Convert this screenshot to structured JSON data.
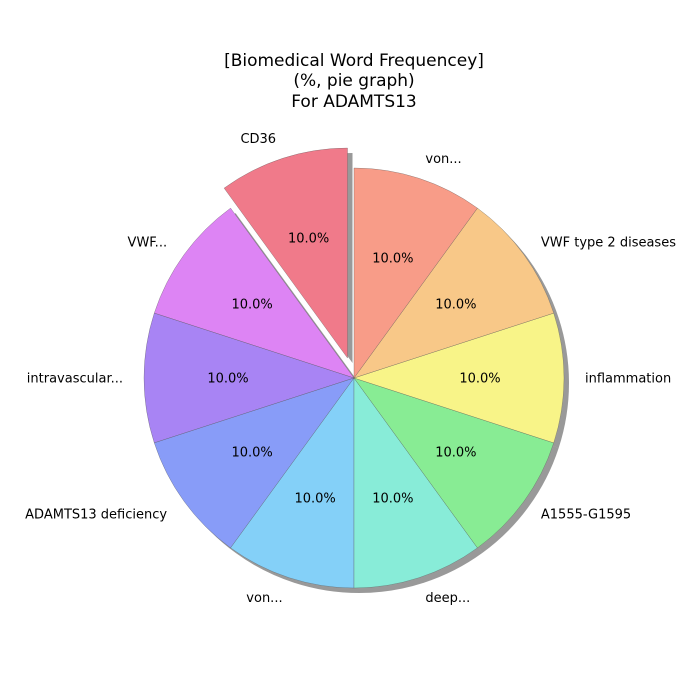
{
  "chart_data": {
    "type": "pie",
    "title": [
      "[Biomedical Word Frequencey]",
      "(%, pie graph)",
      "For ADAMTS13"
    ],
    "categories": [
      "CD36",
      "VWF...",
      "intravascular...",
      "ADAMTS13 deficiency",
      "von...",
      "deep...",
      "A1555-G1595",
      "inflammation",
      "VWF type 2 diseases",
      "von..."
    ],
    "values": [
      10.0,
      10.0,
      10.0,
      10.0,
      10.0,
      10.0,
      10.0,
      10.0,
      10.0,
      10.0
    ],
    "value_labels": [
      "10.0%",
      "10.0%",
      "10.0%",
      "10.0%",
      "10.0%",
      "10.0%",
      "10.0%",
      "10.0%",
      "10.0%",
      "10.0%"
    ],
    "colors": [
      "#f07a8a",
      "#dd84f4",
      "#a884f4",
      "#889cf8",
      "#84d0f8",
      "#88ecd8",
      "#88ec94",
      "#f8f488",
      "#f8c888",
      "#f89c88"
    ],
    "exploded": [
      "CD36"
    ],
    "shadow": true,
    "start_angle_deg": 90,
    "direction": "counterclockwise"
  }
}
